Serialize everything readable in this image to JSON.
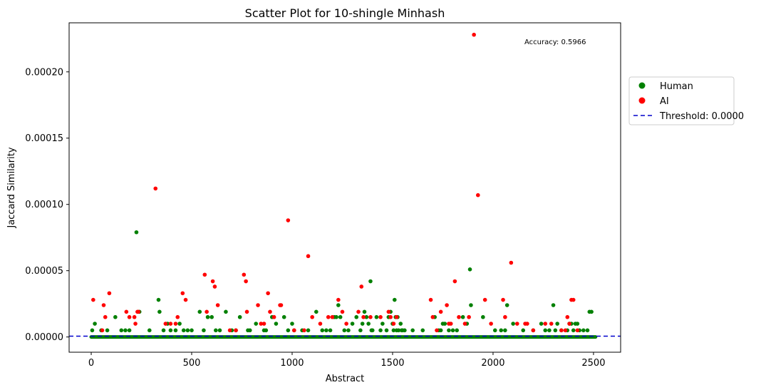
{
  "chart_data": {
    "type": "scatter",
    "title": "Scatter Plot for 10-shingle Minhash",
    "xlabel": "Abstract",
    "ylabel": "Jaccard Similarity",
    "xlim": [
      -110,
      2635
    ],
    "ylim": [
      -1.15e-05,
      0.000237
    ],
    "xticks": [
      0,
      500,
      1000,
      1500,
      2000,
      2500
    ],
    "xtick_labels": [
      "0",
      "500",
      "1000",
      "1500",
      "2000",
      "2500"
    ],
    "yticks": [
      0,
      5e-05,
      0.0001,
      0.00015,
      0.0002
    ],
    "ytick_labels": [
      "0.00000",
      "0.00005",
      "0.00010",
      "0.00015",
      "0.00020"
    ],
    "grid": false,
    "legend_position": "outside-right",
    "annotation": "Accuracy: 0.5966",
    "threshold": {
      "value": 6e-07,
      "label": "Threshold: 0.0000",
      "color": "#0000cc"
    },
    "series": [
      {
        "name": "Human",
        "color": "#008000",
        "x": [
          5,
          18,
          50,
          80,
          120,
          150,
          170,
          190,
          225,
          240,
          290,
          335,
          340,
          360,
          380,
          395,
          420,
          440,
          460,
          480,
          500,
          540,
          560,
          580,
          600,
          620,
          640,
          670,
          700,
          720,
          740,
          780,
          790,
          820,
          860,
          870,
          900,
          920,
          960,
          980,
          1000,
          1010,
          1050,
          1080,
          1120,
          1150,
          1170,
          1190,
          1210,
          1220,
          1230,
          1240,
          1260,
          1280,
          1300,
          1320,
          1340,
          1350,
          1360,
          1370,
          1380,
          1390,
          1395,
          1400,
          1420,
          1440,
          1450,
          1470,
          1480,
          1490,
          1500,
          1505,
          1510,
          1515,
          1520,
          1525,
          1530,
          1540,
          1545,
          1550,
          1560,
          1600,
          1650,
          1710,
          1730,
          1740,
          1750,
          1760,
          1780,
          1800,
          1820,
          1850,
          1870,
          1885,
          1890,
          1950,
          2010,
          2040,
          2060,
          2070,
          2100,
          2150,
          2200,
          2240,
          2260,
          2280,
          2300,
          2310,
          2320,
          2340,
          2370,
          2380,
          2390,
          2400,
          2410,
          2420,
          2430,
          2450,
          2470,
          2480,
          2490
        ],
        "y": [
          5e-06,
          1e-05,
          5e-06,
          5e-06,
          1.5e-05,
          5e-06,
          5e-06,
          5e-06,
          7.9e-05,
          1.9e-05,
          5e-06,
          2.8e-05,
          1.9e-05,
          5e-06,
          1e-05,
          5e-06,
          5e-06,
          1e-05,
          5e-06,
          5e-06,
          5e-06,
          1.9e-05,
          5e-06,
          1.5e-05,
          1.5e-05,
          5e-06,
          5e-06,
          1.9e-05,
          5e-06,
          5e-06,
          1.5e-05,
          5e-06,
          5e-06,
          1e-05,
          5e-06,
          5e-06,
          1.5e-05,
          1e-05,
          1.5e-05,
          5e-06,
          1e-05,
          5e-06,
          5e-06,
          5e-06,
          1.9e-05,
          5e-06,
          5e-06,
          5e-06,
          1.5e-05,
          1.5e-05,
          2.4e-05,
          1.5e-05,
          5e-06,
          5e-06,
          1e-05,
          1.5e-05,
          5e-06,
          1e-05,
          1.9e-05,
          1.5e-05,
          1e-05,
          4.2e-05,
          5e-06,
          5e-06,
          1.5e-05,
          5e-06,
          1e-05,
          5e-06,
          1.5e-05,
          1.9e-05,
          1e-05,
          5e-06,
          2.8e-05,
          1.5e-05,
          5e-06,
          1.5e-05,
          5e-06,
          1e-05,
          5e-06,
          5e-06,
          5e-06,
          5e-06,
          5e-06,
          1.5e-05,
          5e-06,
          5e-06,
          1e-05,
          1e-05,
          5e-06,
          5e-06,
          5e-06,
          1.5e-05,
          1e-05,
          5.1e-05,
          2.4e-05,
          1.5e-05,
          5e-06,
          5e-06,
          5e-06,
          2.4e-05,
          1e-05,
          5e-06,
          5e-06,
          1e-05,
          5e-06,
          5e-06,
          2.4e-05,
          5e-06,
          1e-05,
          5e-06,
          5e-06,
          1e-05,
          1e-05,
          5e-06,
          1e-05,
          1e-05,
          5e-06,
          5e-06,
          5e-06,
          1.9e-05,
          1.9e-05
        ]
      },
      {
        "name": "AI",
        "color": "#ff0000",
        "x": [
          10,
          55,
          62,
          70,
          90,
          175,
          190,
          215,
          220,
          230,
          235,
          320,
          370,
          395,
          420,
          430,
          455,
          470,
          565,
          575,
          605,
          615,
          630,
          690,
          720,
          760,
          770,
          775,
          830,
          845,
          860,
          880,
          890,
          910,
          940,
          945,
          980,
          1010,
          1060,
          1080,
          1100,
          1140,
          1180,
          1200,
          1230,
          1250,
          1270,
          1330,
          1345,
          1355,
          1390,
          1440,
          1480,
          1490,
          1505,
          1520,
          1690,
          1700,
          1720,
          1740,
          1770,
          1780,
          1790,
          1810,
          1830,
          1860,
          1880,
          1905,
          1925,
          1960,
          1990,
          2050,
          2060,
          2090,
          2120,
          2160,
          2170,
          2200,
          2260,
          2290,
          2340,
          2360,
          2370,
          2380,
          2390,
          2400,
          2420
        ],
        "y": [
          2.8e-05,
          5e-06,
          2.4e-05,
          1.5e-05,
          3.3e-05,
          1.9e-05,
          1.5e-05,
          1.5e-05,
          1e-05,
          1.9e-05,
          1.9e-05,
          0.000112,
          1e-05,
          1e-05,
          1e-05,
          1.5e-05,
          3.3e-05,
          2.8e-05,
          4.7e-05,
          1.9e-05,
          4.2e-05,
          3.8e-05,
          2.4e-05,
          5e-06,
          5e-06,
          4.7e-05,
          4.2e-05,
          1.9e-05,
          2.4e-05,
          1e-05,
          1e-05,
          3.3e-05,
          1.9e-05,
          1.5e-05,
          2.4e-05,
          2.4e-05,
          8.8e-05,
          5e-06,
          5e-06,
          6.1e-05,
          1.5e-05,
          1e-05,
          1.5e-05,
          1.5e-05,
          2.8e-05,
          1.9e-05,
          1e-05,
          1.9e-05,
          3.8e-05,
          1.5e-05,
          1.5e-05,
          1.5e-05,
          1.9e-05,
          1.5e-05,
          1e-05,
          1.5e-05,
          2.8e-05,
          1.5e-05,
          5e-06,
          1.9e-05,
          2.4e-05,
          1e-05,
          1e-05,
          4.2e-05,
          1.5e-05,
          1e-05,
          1.5e-05,
          0.000228,
          0.000107,
          2.8e-05,
          1e-05,
          2.8e-05,
          1.5e-05,
          5.6e-05,
          1e-05,
          1e-05,
          1e-05,
          5e-06,
          1e-05,
          1e-05,
          5e-06,
          5e-06,
          1.5e-05,
          1e-05,
          2.8e-05,
          2.8e-05,
          5e-06
        ]
      }
    ]
  }
}
